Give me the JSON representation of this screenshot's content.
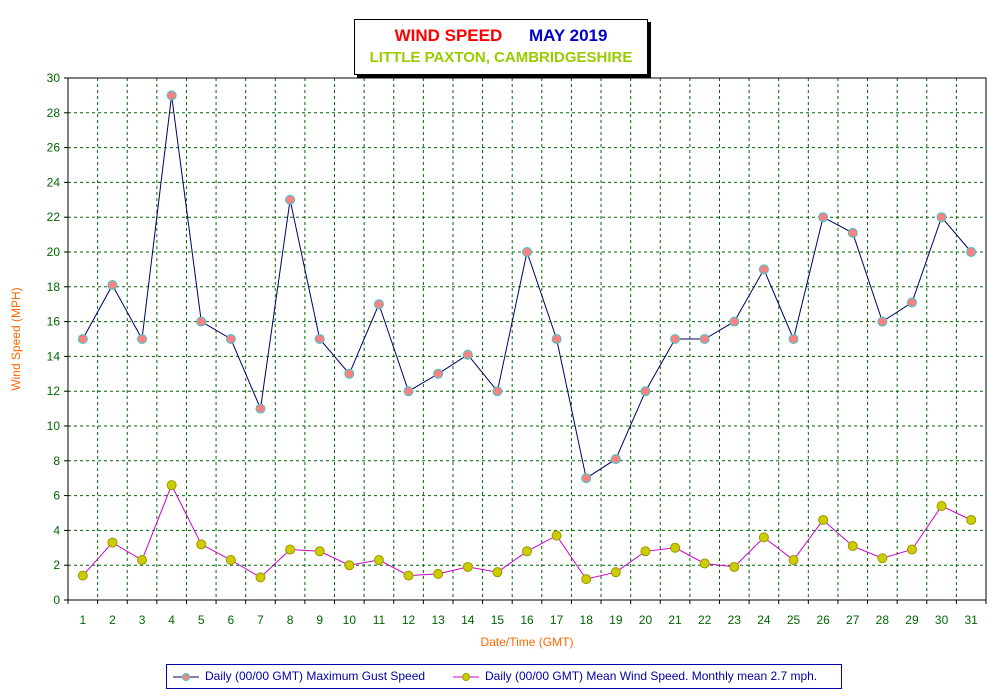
{
  "chart_data": {
    "type": "line",
    "title_part1": "WIND SPEED",
    "title_part2": "MAY 2019",
    "subtitle": "LITTLE PAXTON, CAMBRIDGESHIRE",
    "xlabel": "Date/Time (GMT)",
    "ylabel": "Wind Speed (MPH)",
    "x": [
      1,
      2,
      3,
      4,
      5,
      6,
      7,
      8,
      9,
      10,
      11,
      12,
      13,
      14,
      15,
      16,
      17,
      18,
      19,
      20,
      21,
      22,
      23,
      24,
      25,
      26,
      27,
      28,
      29,
      30,
      31
    ],
    "ylim": [
      0,
      30
    ],
    "yticks": [
      0,
      2,
      4,
      6,
      8,
      10,
      12,
      14,
      16,
      18,
      20,
      22,
      24,
      26,
      28,
      30
    ],
    "grid": true,
    "legend_position": "bottom",
    "series": [
      {
        "name": "Daily (00/00 GMT) Maximum Gust Speed",
        "line_color": "#000066",
        "marker_color": "#ff8080",
        "marker_edge": "#33cccc",
        "values": [
          15,
          18.1,
          15,
          29,
          16,
          15,
          11,
          23,
          15,
          13,
          17,
          12,
          13,
          14.1,
          12,
          20,
          15,
          7,
          8.1,
          12,
          15,
          15,
          16,
          19,
          15,
          22,
          21.1,
          16,
          17.1,
          22,
          20
        ]
      },
      {
        "name": "Daily (00/00 GMT) Mean Wind Speed. Monthly mean 2.7 mph.",
        "line_color": "#cc00cc",
        "marker_color": "#cccc00",
        "marker_edge": "#999900",
        "values": [
          1.4,
          3.3,
          2.3,
          6.6,
          3.2,
          2.3,
          1.3,
          2.9,
          2.8,
          2,
          2.3,
          1.4,
          1.5,
          1.9,
          1.6,
          2.8,
          3.7,
          1.2,
          1.6,
          2.8,
          3,
          2.1,
          1.9,
          3.6,
          2.3,
          4.6,
          3.1,
          2.4,
          2.9,
          5.4,
          4.6
        ]
      }
    ]
  }
}
